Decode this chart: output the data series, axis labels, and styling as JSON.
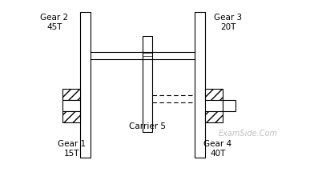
{
  "bg_color": "#ffffff",
  "line_color": "#000000",
  "watermark_color": "#c0c0c0",
  "watermark_text": "ExamSide.Com",
  "labels": {
    "gear1": "Gear 1\n15T",
    "gear2": "Gear 2\n45T",
    "gear3": "Gear 3\n20T",
    "gear4": "Gear 4\n40T",
    "carrier": "Carrier 5"
  },
  "fontsize": 7.5
}
